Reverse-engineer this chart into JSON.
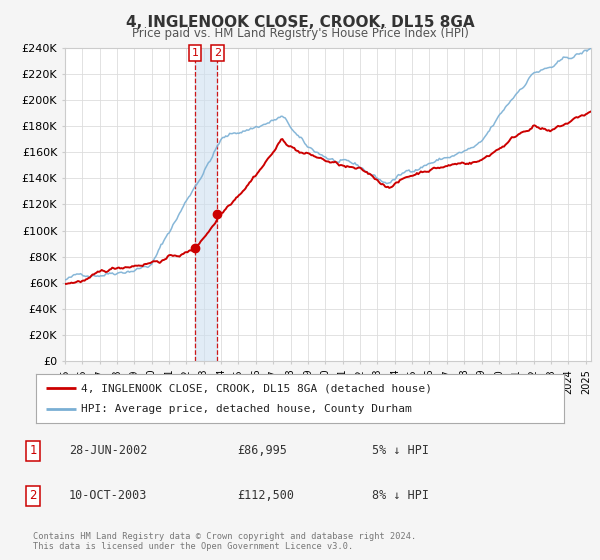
{
  "title": "4, INGLENOOK CLOSE, CROOK, DL15 8GA",
  "subtitle": "Price paid vs. HM Land Registry's House Price Index (HPI)",
  "red_label": "4, INGLENOOK CLOSE, CROOK, DL15 8GA (detached house)",
  "blue_label": "HPI: Average price, detached house, County Durham",
  "transaction1_date": "28-JUN-2002",
  "transaction1_price": "£86,995",
  "transaction1_hpi": "5% ↓ HPI",
  "transaction2_date": "10-OCT-2003",
  "transaction2_price": "£112,500",
  "transaction2_hpi": "8% ↓ HPI",
  "footer": "Contains HM Land Registry data © Crown copyright and database right 2024.\nThis data is licensed under the Open Government Licence v3.0.",
  "red_color": "#cc0000",
  "blue_color": "#7aafd4",
  "point1_x": 2002.49,
  "point1_y": 86995,
  "point2_x": 2003.78,
  "point2_y": 112500,
  "shade_x1": 2002.49,
  "shade_x2": 2003.78,
  "ylim_min": 0,
  "ylim_max": 240000,
  "xlim_min": 1995.0,
  "xlim_max": 2025.3,
  "yticks": [
    0,
    20000,
    40000,
    60000,
    80000,
    100000,
    120000,
    140000,
    160000,
    180000,
    200000,
    220000,
    240000
  ],
  "background_color": "#f5f5f5",
  "plot_bg_color": "#ffffff",
  "grid_color": "#dddddd"
}
